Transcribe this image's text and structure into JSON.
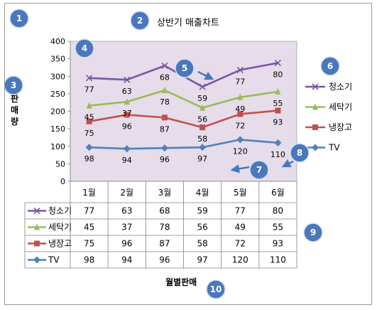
{
  "chart_data": {
    "type": "line",
    "title": "상반기 매출차트",
    "ylabel": "판매량",
    "xlabel": "월별판매",
    "categories": [
      "1월",
      "2월",
      "3월",
      "4월",
      "5월",
      "6월"
    ],
    "ylim": [
      0,
      400
    ],
    "yticks": [
      0,
      50,
      100,
      150,
      200,
      250,
      300,
      350,
      400
    ],
    "grid": false,
    "legend_position": "right",
    "series": [
      {
        "name": "청소기",
        "plot_values": [
          295,
          290,
          330,
          270,
          318,
          338
        ],
        "labels": [
          77,
          63,
          68,
          59,
          77,
          80
        ],
        "color": "#7b55a8",
        "marker": "x"
      },
      {
        "name": "세탁기",
        "plot_values": [
          216,
          227,
          260,
          210,
          240,
          256
        ],
        "labels": [
          45,
          37,
          78,
          56,
          49,
          55
        ],
        "color": "#9bbb59",
        "marker": "triangle"
      },
      {
        "name": "냉장고",
        "plot_values": [
          171,
          190,
          182,
          154,
          192,
          202
        ],
        "labels": [
          75,
          96,
          87,
          58,
          72,
          93
        ],
        "color": "#c0504d",
        "marker": "square"
      },
      {
        "name": "TV",
        "plot_values": [
          97,
          93,
          95,
          97,
          119,
          110
        ],
        "labels": [
          98,
          94,
          96,
          97,
          120,
          110
        ],
        "color": "#4f81bd",
        "marker": "diamond"
      }
    ],
    "table_rows": [
      {
        "name": "청소기",
        "values": [
          77,
          63,
          68,
          59,
          77,
          80
        ]
      },
      {
        "name": "세탁기",
        "values": [
          45,
          37,
          78,
          56,
          49,
          55
        ]
      },
      {
        "name": "냉장고",
        "values": [
          75,
          96,
          87,
          58,
          72,
          93
        ]
      },
      {
        "name": "TV",
        "values": [
          98,
          94,
          96,
          97,
          120,
          110
        ]
      }
    ]
  },
  "callouts": [
    {
      "number": "1"
    },
    {
      "number": "2"
    },
    {
      "number": "3"
    },
    {
      "number": "4"
    },
    {
      "number": "5"
    },
    {
      "number": "6"
    },
    {
      "number": "7"
    },
    {
      "number": "8"
    },
    {
      "number": "9"
    },
    {
      "number": "10"
    }
  ],
  "colors": {
    "plot_area": "#e6dcea",
    "callout_fill": "#4a77bd",
    "callout_stroke": "#d8e2f2"
  }
}
